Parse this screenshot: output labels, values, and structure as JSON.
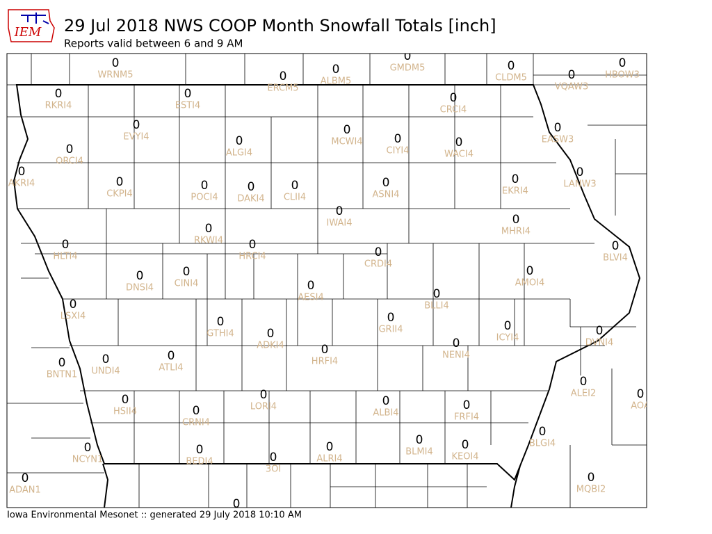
{
  "logo": "IEM",
  "header": {
    "title": "29 Jul 2018 NWS COOP Month Snowfall Totals [inch]",
    "subtitle": "Reports valid between 6 and 9 AM"
  },
  "stations": [
    {
      "label": "WRNM5",
      "value": 0
    },
    {
      "label": "ERCM5",
      "value": 0
    },
    {
      "label": "ALBM5",
      "value": 0
    },
    {
      "label": "GMDM5",
      "value": 0
    },
    {
      "label": "CLDM5",
      "value": 0
    },
    {
      "label": "VQAW3",
      "value": 0
    },
    {
      "label": "HBOW3",
      "value": 0
    },
    {
      "label": "RKRI4",
      "value": 0
    },
    {
      "label": "ESTI4",
      "value": 0
    },
    {
      "label": "CRCI4",
      "value": 0
    },
    {
      "label": "EVYI4",
      "value": 0
    },
    {
      "label": "EASW3",
      "value": 0
    },
    {
      "label": "MCWI4",
      "value": 0
    },
    {
      "label": "ALGI4",
      "value": 0
    },
    {
      "label": "CIYI4",
      "value": 0
    },
    {
      "label": "WACI4",
      "value": 0
    },
    {
      "label": "ORCI4",
      "value": 0
    },
    {
      "label": "AKRI4",
      "value": 0
    },
    {
      "label": "LANW3",
      "value": 0
    },
    {
      "label": "CKPI4",
      "value": 0
    },
    {
      "label": "POCI4",
      "value": 0
    },
    {
      "label": "DAKI4",
      "value": 0
    },
    {
      "label": "CLII4",
      "value": 0
    },
    {
      "label": "ASNI4",
      "value": 0
    },
    {
      "label": "EKRI4",
      "value": 0
    },
    {
      "label": "IWAI4",
      "value": 0
    },
    {
      "label": "MHRI4",
      "value": 0
    },
    {
      "label": "RKWI4",
      "value": 0
    },
    {
      "label": "HLTI4",
      "value": 0
    },
    {
      "label": "HRCI4",
      "value": 0
    },
    {
      "label": "CRDI4",
      "value": 0
    },
    {
      "label": "BLVI4",
      "value": 0
    },
    {
      "label": "AMOI4",
      "value": 0
    },
    {
      "label": "DNSI4",
      "value": 0
    },
    {
      "label": "CINI4",
      "value": 0
    },
    {
      "label": "AESI4",
      "value": 0
    },
    {
      "label": "BLLI4",
      "value": 0
    },
    {
      "label": "LSXI4",
      "value": 0
    },
    {
      "label": "GRII4",
      "value": 0
    },
    {
      "label": "GTHI4",
      "value": 0
    },
    {
      "label": "ADKI4",
      "value": 0
    },
    {
      "label": "ICYI4",
      "value": 0
    },
    {
      "label": "DVNI4",
      "value": 0
    },
    {
      "label": "NENI4",
      "value": 0
    },
    {
      "label": "HRFI4",
      "value": 0
    },
    {
      "label": "ATLI4",
      "value": 0
    },
    {
      "label": "UNDI4",
      "value": 0
    },
    {
      "label": "BNTN1",
      "value": 0
    },
    {
      "label": "ALEI2",
      "value": 0
    },
    {
      "label": "AOA",
      "value": 0
    },
    {
      "label": "LORI4",
      "value": 0
    },
    {
      "label": "ALBI4",
      "value": 0
    },
    {
      "label": "HSII4",
      "value": 0
    },
    {
      "label": "FRFI4",
      "value": 0
    },
    {
      "label": "CRNI4",
      "value": 0
    },
    {
      "label": "BLGI4",
      "value": 0
    },
    {
      "label": "BLMI4",
      "value": 0
    },
    {
      "label": "KEOI4",
      "value": 0
    },
    {
      "label": "ALRI4",
      "value": 0
    },
    {
      "label": "NCYN1",
      "value": 0
    },
    {
      "label": "BEDI4",
      "value": 0
    },
    {
      "label": "3OI",
      "value": 0
    },
    {
      "label": "ADAN1",
      "value": 0
    },
    {
      "label": "MQBI2",
      "value": 0
    },
    {
      "label": null,
      "value": 0
    }
  ],
  "footer": "Iowa Environmental Mesonet :: generated 29 July 2018 10:10 AM"
}
